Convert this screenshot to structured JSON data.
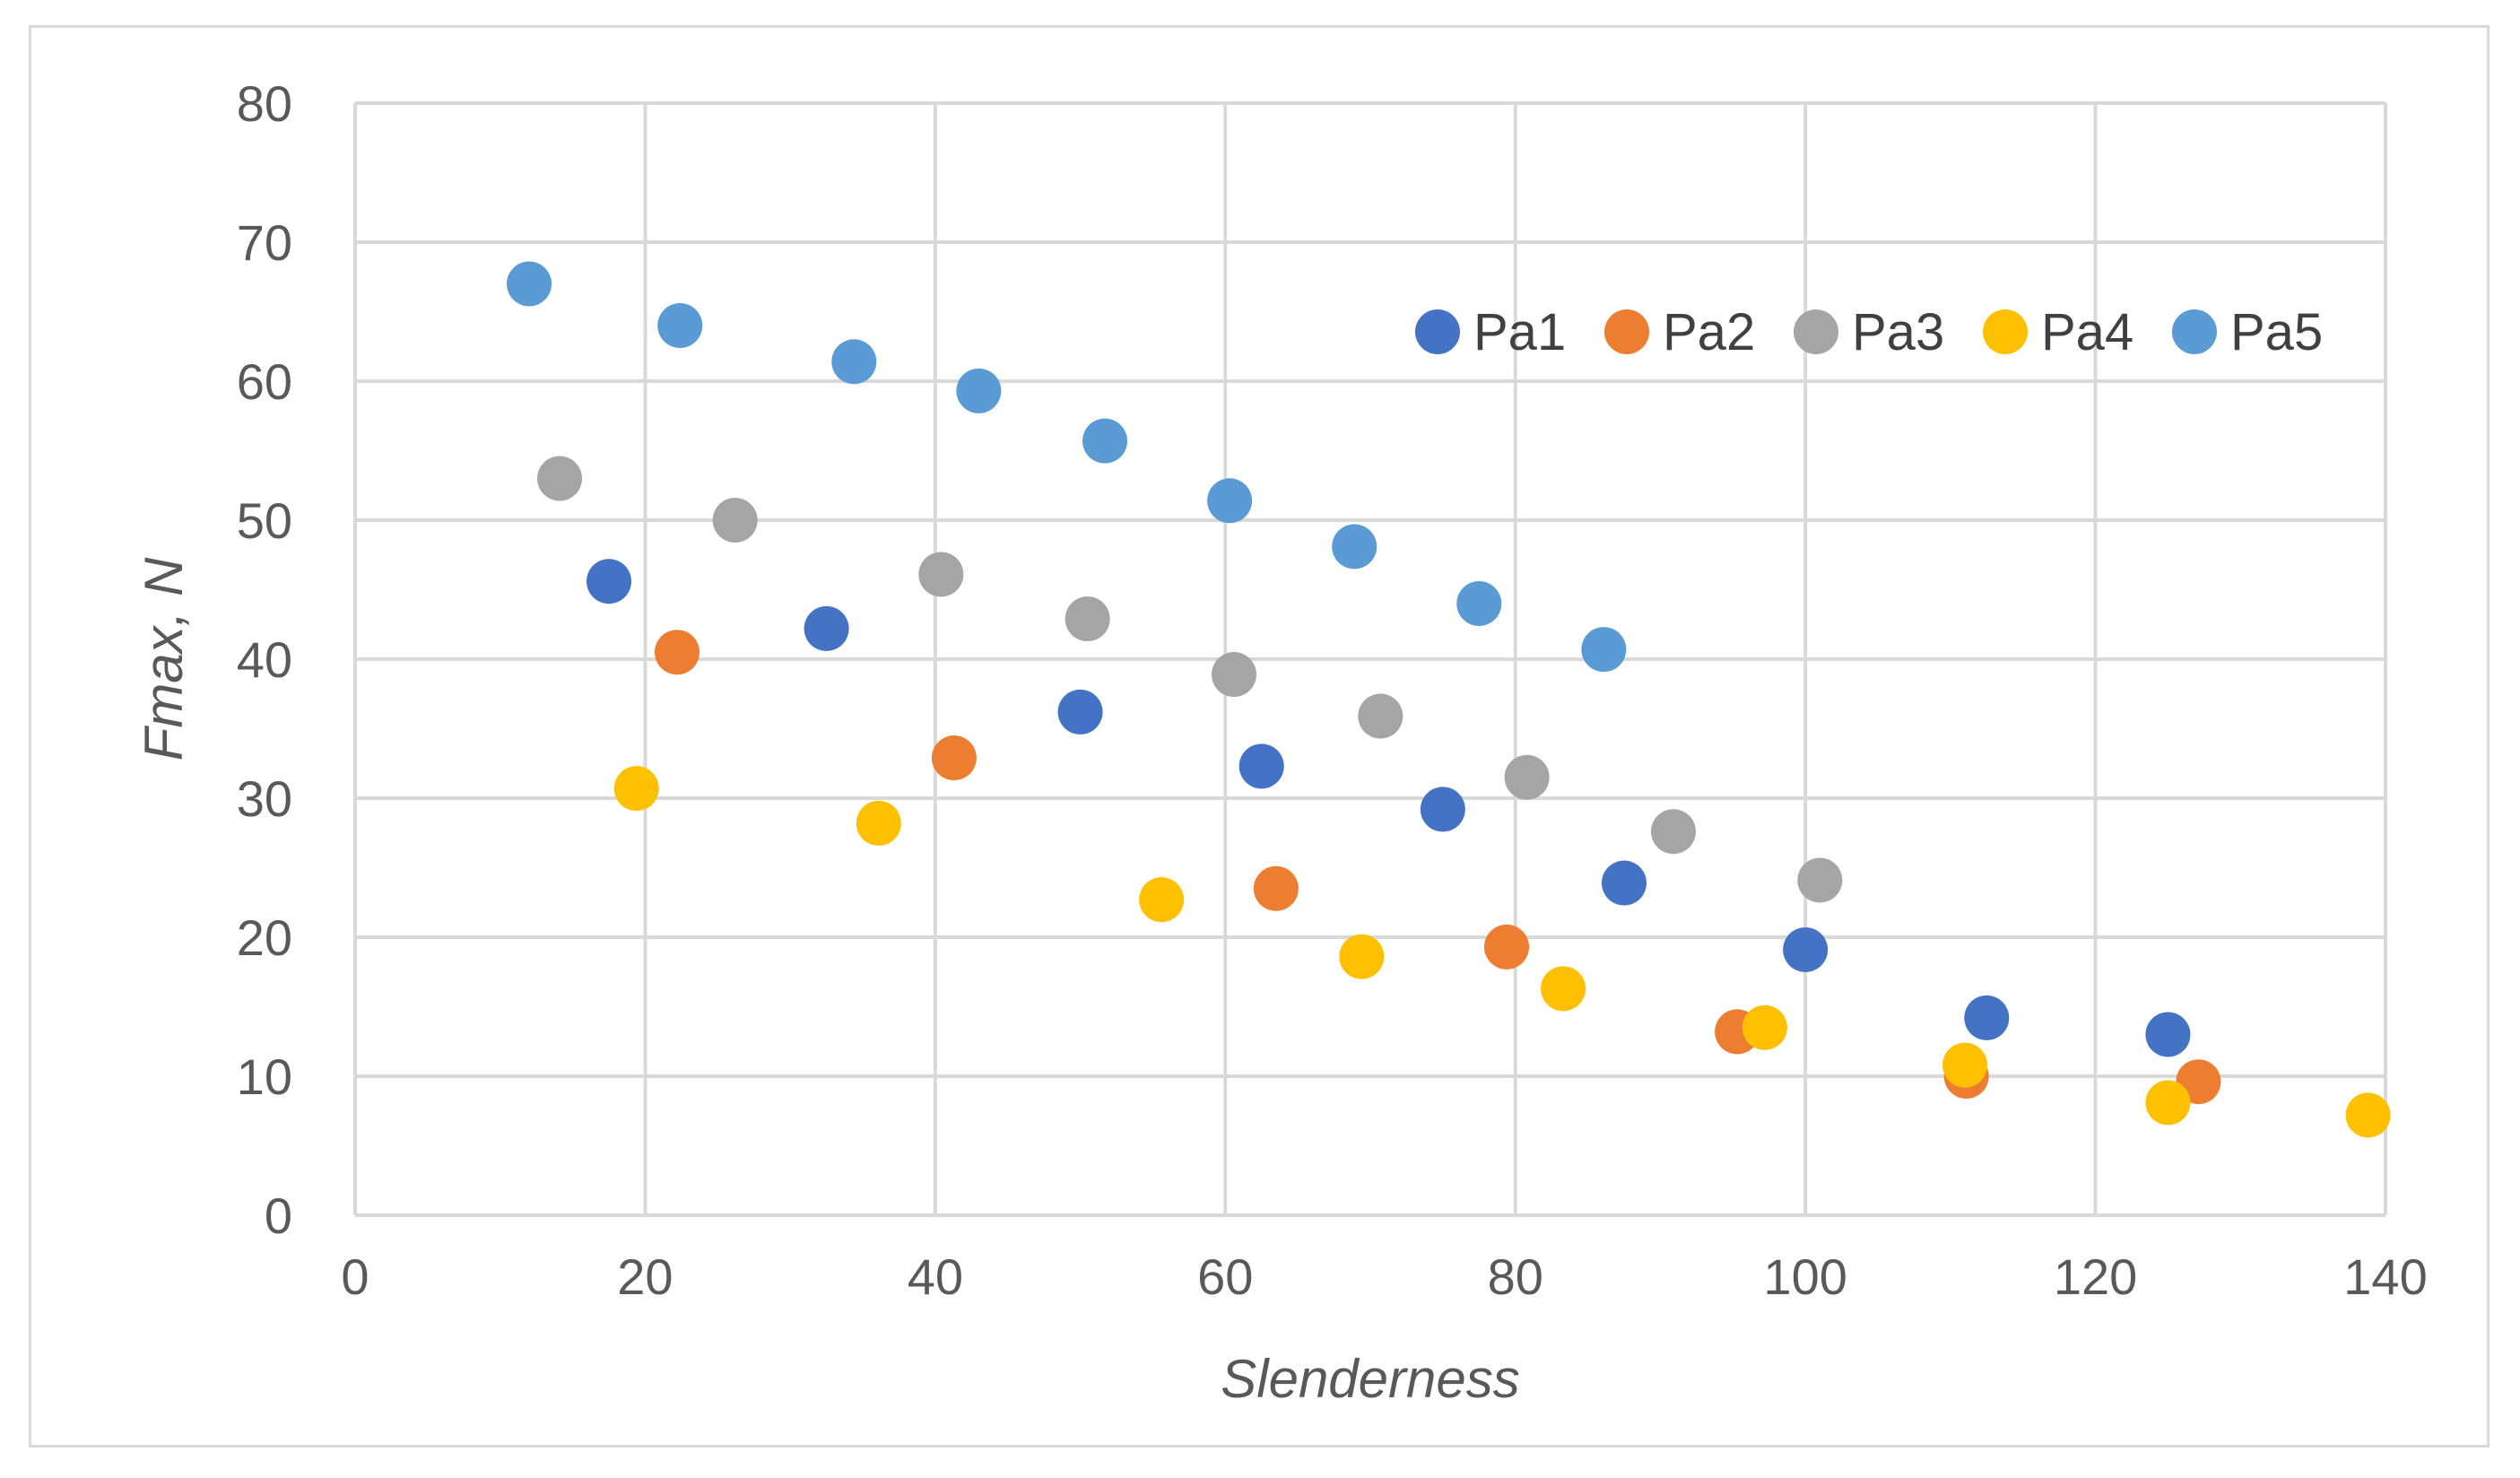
{
  "chart_data": {
    "type": "scatter",
    "title": "",
    "xlabel": "Slenderness",
    "ylabel": "Fmax, N",
    "xlim": [
      0,
      140
    ],
    "ylim": [
      0,
      80
    ],
    "xticks": [
      0,
      20,
      40,
      60,
      80,
      100,
      120,
      140
    ],
    "yticks": [
      0,
      10,
      20,
      30,
      40,
      50,
      60,
      70,
      80
    ],
    "x_tick_labels": [
      "0",
      "20",
      "40",
      "60",
      "80",
      "100",
      "120",
      "140"
    ],
    "y_tick_labels": [
      "0",
      "10",
      "20",
      "30",
      "40",
      "50",
      "60",
      "70",
      "80"
    ],
    "grid": true,
    "legend_position": "top-right",
    "series": [
      {
        "name": "Pa1",
        "color": "#4472C4",
        "points": [
          [
            17.5,
            45.6
          ],
          [
            32.5,
            42.2
          ],
          [
            50,
            36.2
          ],
          [
            62.5,
            32.3
          ],
          [
            75,
            29.2
          ],
          [
            87.5,
            23.9
          ],
          [
            100,
            19.1
          ],
          [
            112.5,
            14.2
          ],
          [
            125,
            13.0
          ]
        ]
      },
      {
        "name": "Pa2",
        "color": "#ED7D31",
        "points": [
          [
            22.2,
            40.5
          ],
          [
            41.3,
            32.9
          ],
          [
            63.5,
            23.5
          ],
          [
            79.4,
            19.3
          ],
          [
            95.3,
            13.2
          ],
          [
            111.1,
            10.0
          ],
          [
            127.1,
            9.6
          ]
        ]
      },
      {
        "name": "Pa3",
        "color": "#A5A5A5",
        "points": [
          [
            14.1,
            53.0
          ],
          [
            26.2,
            50.0
          ],
          [
            40.4,
            46.1
          ],
          [
            50.5,
            42.9
          ],
          [
            60.6,
            38.9
          ],
          [
            70.7,
            35.9
          ],
          [
            80.8,
            31.5
          ],
          [
            90.9,
            27.6
          ],
          [
            101.0,
            24.1
          ]
        ]
      },
      {
        "name": "Pa4",
        "color": "#FFC000",
        "points": [
          [
            19.4,
            30.7
          ],
          [
            36.1,
            28.2
          ],
          [
            55.6,
            22.7
          ],
          [
            69.4,
            18.6
          ],
          [
            83.3,
            16.3
          ],
          [
            97.2,
            13.5
          ],
          [
            111.0,
            10.8
          ],
          [
            125.0,
            8.1
          ],
          [
            138.8,
            7.2
          ]
        ]
      },
      {
        "name": "Pa5",
        "color": "#5B9BD5",
        "points": [
          [
            12.0,
            67.0
          ],
          [
            22.4,
            64.0
          ],
          [
            34.4,
            61.4
          ],
          [
            43.0,
            59.3
          ],
          [
            51.7,
            55.7
          ],
          [
            60.3,
            51.4
          ],
          [
            68.9,
            48.1
          ],
          [
            77.5,
            44.0
          ],
          [
            86.1,
            40.7
          ]
        ]
      }
    ]
  }
}
